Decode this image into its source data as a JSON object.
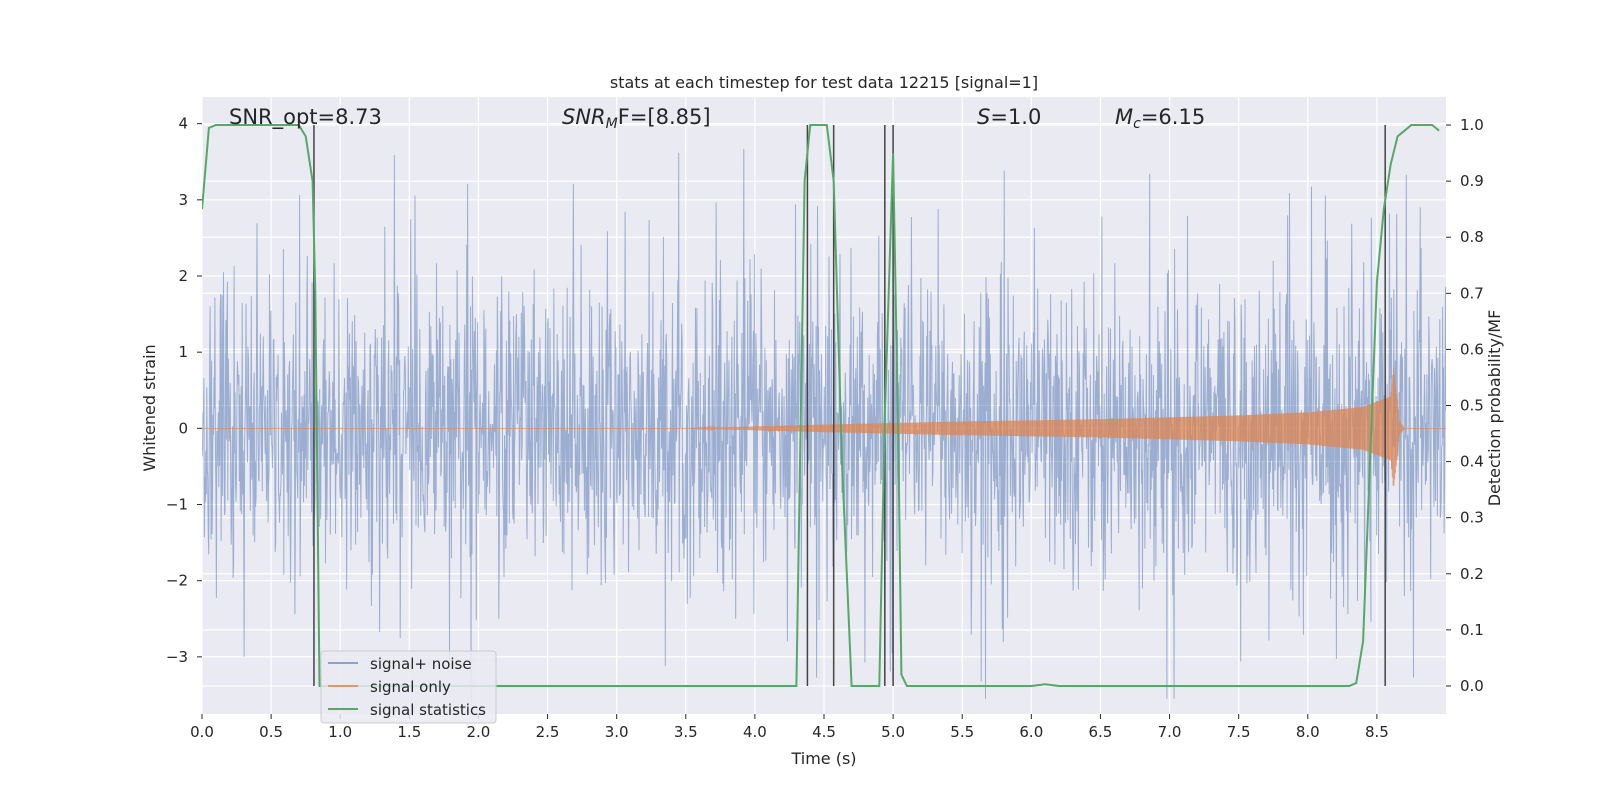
{
  "chart_data": {
    "type": "line",
    "title": "stats at each timestep for test data 12215 [signal=1]",
    "xlabel": "Time (s)",
    "ylabel_left": "Whitened strain",
    "ylabel_right": "Detection probability/MF",
    "xlim": [
      0.0,
      9.0
    ],
    "ylim_left": [
      -3.75,
      4.35
    ],
    "ylim_right": [
      -0.05,
      1.05
    ],
    "x_ticks": [
      "0.0",
      "0.5",
      "1.0",
      "1.5",
      "2.0",
      "2.5",
      "3.0",
      "3.5",
      "4.0",
      "4.5",
      "5.0",
      "5.5",
      "6.0",
      "6.5",
      "7.0",
      "7.5",
      "8.0",
      "8.5"
    ],
    "y_ticks_left": [
      "4",
      "3",
      "2",
      "1",
      "0",
      "−1",
      "−2",
      "−3"
    ],
    "y_ticks_right": [
      "1.0",
      "0.9",
      "0.8",
      "0.7",
      "0.6",
      "0.5",
      "0.4",
      "0.3",
      "0.2",
      "0.1",
      "0.0"
    ],
    "grid": true,
    "legend_position": "lower-left",
    "annotations": {
      "snr_opt": "SNR_opt=8.73",
      "snr_mf_base": "SNR",
      "snr_mf_sub": "M",
      "snr_mf_tail": "F=[8.85]",
      "s_var": "S",
      "s_val": "=1.0",
      "mc_var": "M",
      "mc_sub": "c",
      "mc_val": "=6.15"
    },
    "vertical_markers_x": [
      0.81,
      4.38,
      4.57,
      4.94,
      5.0,
      8.56
    ],
    "series": [
      {
        "name": "signal+ noise",
        "color": "#4c72b0",
        "axis": "left",
        "description": "whitened strain noise, roughly within [-2.5, 2.5] with spikes to ±3.5"
      },
      {
        "name": "signal only",
        "color": "#dd8452",
        "axis": "left",
        "envelope_x": [
          0.0,
          3.5,
          4.5,
          5.5,
          6.5,
          7.5,
          8.0,
          8.4,
          8.6,
          8.62,
          8.65,
          8.66,
          8.7,
          9.0
        ],
        "envelope_amp": [
          0.0,
          0.0,
          0.05,
          0.09,
          0.12,
          0.17,
          0.21,
          0.28,
          0.42,
          0.8,
          0.35,
          0.1,
          0.0,
          0.0
        ]
      },
      {
        "name": "signal statistics",
        "color": "#55a868",
        "axis": "right",
        "x": [
          0.0,
          0.05,
          0.1,
          0.15,
          0.2,
          0.3,
          0.4,
          0.5,
          0.6,
          0.7,
          0.75,
          0.8,
          0.82,
          0.85,
          0.9,
          1.0,
          2.0,
          3.0,
          4.0,
          4.3,
          4.36,
          4.4,
          4.44,
          4.52,
          4.57,
          4.63,
          4.7,
          4.76,
          4.85,
          4.9,
          4.94,
          5.0,
          5.04,
          5.06,
          5.1,
          5.2,
          6.0,
          6.1,
          6.2,
          7.0,
          8.0,
          8.3,
          8.35,
          8.4,
          8.45,
          8.5,
          8.55,
          8.6,
          8.65,
          8.7,
          8.75,
          8.8,
          8.85,
          8.9,
          8.95
        ],
        "y": [
          0.85,
          0.995,
          1.0,
          1.0,
          1.0,
          1.0,
          1.0,
          1.0,
          1.0,
          1.0,
          0.98,
          0.9,
          0.7,
          0.0,
          0.0,
          0.0,
          0.0,
          0.0,
          0.0,
          0.0,
          0.9,
          1.0,
          1.0,
          1.0,
          0.9,
          0.4,
          0.0,
          0.0,
          0.0,
          0.0,
          0.48,
          0.95,
          0.4,
          0.02,
          0.0,
          0.0,
          0.0,
          0.003,
          0.0,
          0.0,
          0.0,
          0.0,
          0.005,
          0.08,
          0.4,
          0.72,
          0.85,
          0.93,
          0.98,
          0.99,
          1.0,
          1.0,
          1.0,
          1.0,
          0.99
        ]
      }
    ]
  },
  "colors": {
    "plot_background": "#eaeaf2",
    "grid": "#ffffff",
    "marker_line": "#444444",
    "noise": "#4c72b0",
    "signal": "#dd8452",
    "statistics": "#55a868"
  }
}
